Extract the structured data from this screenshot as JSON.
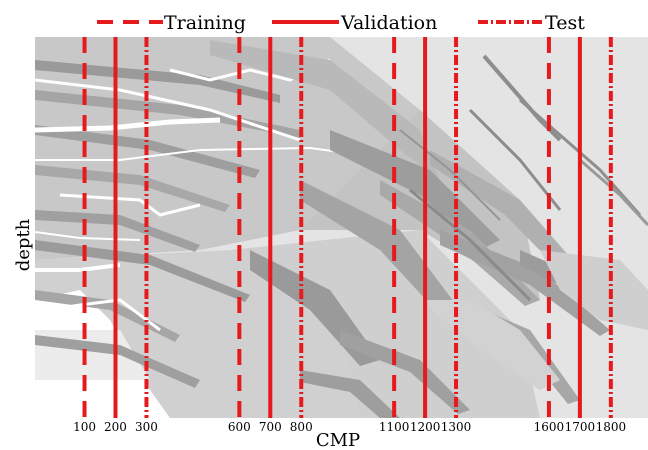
{
  "legend": {
    "training": "Training",
    "validation": "Validation",
    "test": "Test"
  },
  "axes": {
    "xlabel": "CMP",
    "ylabel": "depth"
  },
  "colors": {
    "split_line": "#e41a1c",
    "background": "#e4e4e4"
  },
  "splits": {
    "training": [
      100,
      600,
      1100,
      1600
    ],
    "validation": [
      200,
      700,
      1200,
      1700
    ],
    "test": [
      300,
      800,
      1300,
      1800
    ]
  },
  "ticks": [
    100,
    200,
    300,
    600,
    700,
    800,
    1100,
    1200,
    1300,
    1600,
    1700,
    1800
  ],
  "xrange": [
    -60,
    1920
  ]
}
